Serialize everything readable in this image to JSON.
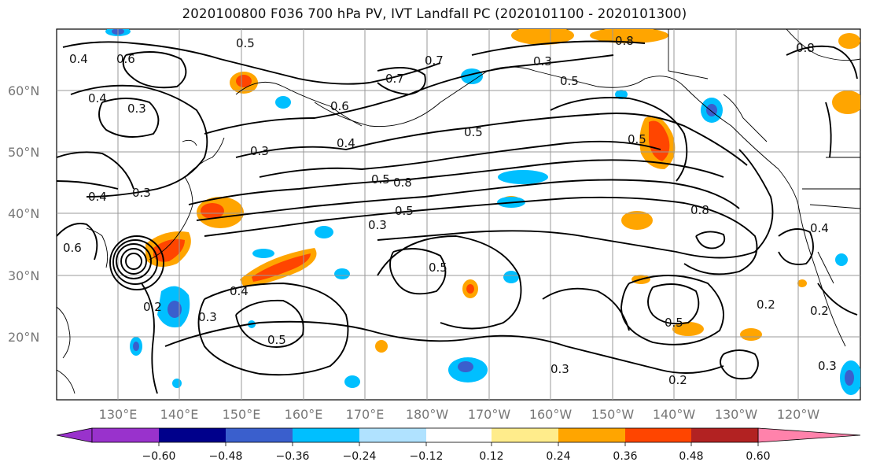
{
  "title": "2020100800 F036 700 hPa PV, IVT Landfall PC (2020101100 - 2020101300)",
  "map": {
    "lat_labels": [
      "60°N",
      "50°N",
      "40°N",
      "30°N",
      "20°N"
    ],
    "lon_labels": [
      "130°E",
      "140°E",
      "150°E",
      "160°E",
      "170°E",
      "180°W",
      "170°W",
      "160°W",
      "150°W",
      "140°W",
      "130°W",
      "120°W"
    ],
    "contour_labels": [
      "0.5",
      "0.4",
      "0.6",
      "0.7",
      "0.3",
      "0.8",
      "0.5",
      "0.4",
      "0.3",
      "0.6",
      "0.8",
      "0.7",
      "0.5",
      "0.3",
      "0.4",
      "0.3",
      "0.5",
      "0.5",
      "0.4",
      "0.3",
      "0.2",
      "0.5",
      "0.3",
      "0.2",
      "0.2",
      "0.8",
      "0.5",
      "0.8",
      "0.4",
      "0.6",
      "0.3",
      "0.5",
      "0.4",
      "0.2",
      "0.3",
      "0.5"
    ]
  },
  "colorbar": {
    "tick_labels": [
      "−0.60",
      "−0.48",
      "−0.36",
      "−0.24",
      "−0.12",
      "0.12",
      "0.24",
      "0.36",
      "0.48",
      "0.60"
    ],
    "colors": [
      "#9932CC",
      "#00008B",
      "#3A5FCD",
      "#00BFFF",
      "#B0E2FF",
      "#FFFFFF",
      "#FFEC8B",
      "#FFA500",
      "#FF4500",
      "#B22222",
      "#FF82AB"
    ]
  }
}
